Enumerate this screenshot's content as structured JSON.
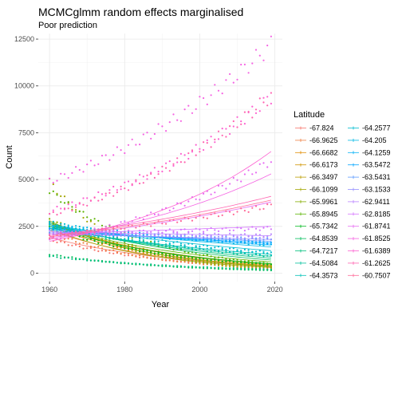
{
  "chart_data": {
    "type": "line",
    "title": "MCMCglmm random effects marginalised",
    "subtitle": "Poor prediction",
    "xlabel": "Year",
    "ylabel": "Count",
    "xlim": [
      1957,
      2022
    ],
    "ylim": [
      -450,
      12800
    ],
    "x_ticks": [
      1960,
      1980,
      2000,
      2020
    ],
    "y_ticks": [
      0,
      2500,
      5000,
      7500,
      10000,
      12500
    ],
    "x_tick_labels": [
      "1960",
      "1980",
      "2000",
      "2020"
    ],
    "y_tick_labels": [
      "0",
      "2500",
      "5000",
      "7500",
      "10000",
      "12500"
    ],
    "grid": true,
    "legend": {
      "title": "Latitude",
      "placement": "right",
      "columns": 2
    },
    "description_of_marks": "observed counts drawn as points, model predictions drawn as lines, both coloured by Latitude",
    "series": [
      {
        "name": "-67.824",
        "color": "#F8766D",
        "pred": [
          1900,
          380
        ],
        "obs": [
          1800,
          300
        ]
      },
      {
        "name": "-66.9625",
        "color": "#EE8043",
        "pred": [
          2300,
          350
        ],
        "obs": [
          2200,
          250
        ]
      },
      {
        "name": "-66.6682",
        "color": "#E08B00",
        "pred": [
          2500,
          400
        ],
        "obs": [
          2600,
          350
        ]
      },
      {
        "name": "-66.6173",
        "color": "#CF9400",
        "pred": [
          2600,
          500
        ],
        "obs": [
          2700,
          450
        ]
      },
      {
        "name": "-66.3497",
        "color": "#BB9D00",
        "pred": [
          2700,
          450
        ],
        "obs": [
          2800,
          400
        ]
      },
      {
        "name": "-66.1099",
        "color": "#A3A500",
        "pred": [
          2400,
          300
        ],
        "obs": [
          4900,
          200
        ]
      },
      {
        "name": "-65.9961",
        "color": "#85AD00",
        "pred": [
          2800,
          350
        ],
        "obs": [
          2900,
          300
        ]
      },
      {
        "name": "-65.8945",
        "color": "#5BB300",
        "pred": [
          2600,
          600
        ],
        "obs": [
          4400,
          500
        ]
      },
      {
        "name": "-65.7342",
        "color": "#00B81F",
        "pred": [
          2500,
          500
        ],
        "obs": [
          2400,
          450
        ]
      },
      {
        "name": "-64.8539",
        "color": "#00BC59",
        "pred": [
          2700,
          700
        ],
        "obs": [
          1000,
          150
        ]
      },
      {
        "name": "-64.7217",
        "color": "#00BF7D",
        "pred": [
          2600,
          800
        ],
        "obs": [
          900,
          200
        ]
      },
      {
        "name": "-64.5084",
        "color": "#00C19C",
        "pred": [
          2500,
          900
        ],
        "obs": [
          2500,
          900
        ]
      },
      {
        "name": "-64.3573",
        "color": "#00C0B7",
        "pred": [
          2400,
          1000
        ],
        "obs": [
          2400,
          1000
        ]
      },
      {
        "name": "-64.2577",
        "color": "#00BDD0",
        "pred": [
          2600,
          1200
        ],
        "obs": [
          2700,
          1100
        ]
      },
      {
        "name": "-64.205",
        "color": "#00B8E5",
        "pred": [
          2500,
          1400
        ],
        "obs": [
          2600,
          1500
        ]
      },
      {
        "name": "-64.1259",
        "color": "#00B0F6",
        "pred": [
          2400,
          1500
        ],
        "obs": [
          2500,
          1600
        ]
      },
      {
        "name": "-63.5472",
        "color": "#00A5FF",
        "pred": [
          2300,
          1600
        ],
        "obs": [
          2300,
          1600
        ]
      },
      {
        "name": "-63.5431",
        "color": "#5E9BFF",
        "pred": [
          2200,
          1700
        ],
        "obs": [
          2200,
          1800
        ]
      },
      {
        "name": "-63.1533",
        "color": "#9590FF",
        "pred": [
          2100,
          1800
        ],
        "obs": [
          2150,
          1850
        ]
      },
      {
        "name": "-62.9411",
        "color": "#B983FF",
        "pred": [
          2200,
          2000
        ],
        "obs": [
          2200,
          2000
        ]
      },
      {
        "name": "-62.8185",
        "color": "#D575FE",
        "pred": [
          2100,
          2500
        ],
        "obs": [
          2100,
          2400
        ]
      },
      {
        "name": "-61.8741",
        "color": "#E76BF3",
        "pred": [
          1900,
          3800
        ],
        "obs": [
          1800,
          6000
        ]
      },
      {
        "name": "-61.8525",
        "color": "#F564E3",
        "pred": [
          1800,
          5300
        ],
        "obs": [
          4900,
          12200
        ]
      },
      {
        "name": "-61.6389",
        "color": "#FD61D1",
        "pred": [
          1700,
          6500
        ],
        "obs": [
          3300,
          9400
        ]
      },
      {
        "name": "-61.2625",
        "color": "#FF64B0",
        "pred": [
          2000,
          4100
        ],
        "obs": [
          3100,
          9500
        ]
      },
      {
        "name": "-60.7507",
        "color": "#FF6A98",
        "pred": [
          1950,
          3900
        ],
        "obs": [
          2000,
          3600
        ]
      }
    ]
  }
}
